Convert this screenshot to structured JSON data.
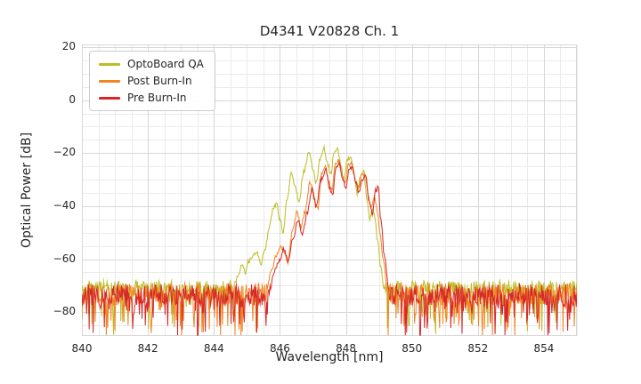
{
  "chart_data": {
    "type": "line",
    "title": "D4341 V20828 Ch. 1",
    "xlabel": "Wavelength [nm]",
    "ylabel": "Optical Power [dB]",
    "xlim": [
      840,
      855
    ],
    "ylim": [
      -89,
      21
    ],
    "x_ticks": [
      840,
      842,
      844,
      846,
      848,
      850,
      852,
      854
    ],
    "y_ticks": [
      20,
      0,
      -20,
      -40,
      -60,
      -80
    ],
    "grid": {
      "on": true,
      "minor_x_step_nm": 0.5,
      "minor_y_step_db": 5,
      "major_color": "#d7d7d7",
      "minor_color": "#ebebeb"
    },
    "legend_position": "upper-left",
    "noise_step_nm": 0.02,
    "series": [
      {
        "name": "OptoBoard QA",
        "color": "#bcbd22",
        "seed": 11,
        "noise_floor": -71.0,
        "noise_band": 6,
        "spike_prob": 0.22,
        "spike_depth": 15,
        "signal_range": [
          844.6,
          849.15
        ],
        "signal_points": [
          [
            844.6,
            -70
          ],
          [
            844.72,
            -67
          ],
          [
            844.85,
            -62
          ],
          [
            844.95,
            -65
          ],
          [
            845.05,
            -61
          ],
          [
            845.18,
            -59
          ],
          [
            845.3,
            -57
          ],
          [
            845.42,
            -62
          ],
          [
            845.55,
            -56
          ],
          [
            845.68,
            -48
          ],
          [
            845.8,
            -41
          ],
          [
            845.9,
            -39
          ],
          [
            846.0,
            -45
          ],
          [
            846.1,
            -50
          ],
          [
            846.22,
            -37
          ],
          [
            846.35,
            -27
          ],
          [
            846.47,
            -33
          ],
          [
            846.58,
            -38
          ],
          [
            846.72,
            -27
          ],
          [
            846.88,
            -20
          ],
          [
            847.0,
            -26
          ],
          [
            847.1,
            -31
          ],
          [
            847.22,
            -22
          ],
          [
            847.33,
            -18
          ],
          [
            847.44,
            -24
          ],
          [
            847.54,
            -28
          ],
          [
            847.64,
            -20
          ],
          [
            847.74,
            -18.5
          ],
          [
            847.84,
            -24
          ],
          [
            847.94,
            -30
          ],
          [
            848.04,
            -23
          ],
          [
            848.14,
            -21
          ],
          [
            848.24,
            -28
          ],
          [
            848.34,
            -35
          ],
          [
            848.44,
            -29
          ],
          [
            848.54,
            -27
          ],
          [
            848.64,
            -38
          ],
          [
            848.72,
            -45
          ],
          [
            848.8,
            -41
          ],
          [
            848.88,
            -44
          ],
          [
            848.96,
            -53
          ],
          [
            849.05,
            -63
          ],
          [
            849.15,
            -71
          ]
        ]
      },
      {
        "name": "Post Burn-In",
        "color": "#f28522",
        "seed": 23,
        "noise_floor": -73.0,
        "noise_band": 8,
        "spike_prob": 0.3,
        "spike_depth": 16,
        "signal_range": [
          845.6,
          849.25
        ],
        "signal_points": [
          [
            845.6,
            -71
          ],
          [
            845.75,
            -64
          ],
          [
            845.88,
            -59
          ],
          [
            846.02,
            -55
          ],
          [
            846.12,
            -57
          ],
          [
            846.24,
            -61
          ],
          [
            846.38,
            -49
          ],
          [
            846.52,
            -42
          ],
          [
            846.64,
            -48
          ],
          [
            846.76,
            -42
          ],
          [
            846.92,
            -31
          ],
          [
            847.04,
            -37
          ],
          [
            847.14,
            -41
          ],
          [
            847.27,
            -28
          ],
          [
            847.38,
            -25
          ],
          [
            847.48,
            -31
          ],
          [
            847.58,
            -34
          ],
          [
            847.68,
            -24
          ],
          [
            847.78,
            -23
          ],
          [
            847.88,
            -28
          ],
          [
            847.98,
            -31
          ],
          [
            848.08,
            -24.5
          ],
          [
            848.18,
            -24
          ],
          [
            848.28,
            -30
          ],
          [
            848.38,
            -33
          ],
          [
            848.48,
            -28.5
          ],
          [
            848.58,
            -28
          ],
          [
            848.68,
            -36
          ],
          [
            848.76,
            -41
          ],
          [
            848.86,
            -37
          ],
          [
            848.94,
            -41
          ],
          [
            849.04,
            -51
          ],
          [
            849.14,
            -61
          ],
          [
            849.25,
            -71
          ]
        ]
      },
      {
        "name": "Pre Burn-In",
        "color": "#d62728",
        "seed": 37,
        "noise_floor": -73.5,
        "noise_band": 8,
        "spike_prob": 0.32,
        "spike_depth": 16,
        "signal_range": [
          845.7,
          849.3
        ],
        "signal_points": [
          [
            845.7,
            -71
          ],
          [
            845.85,
            -64
          ],
          [
            846.0,
            -60
          ],
          [
            846.12,
            -56
          ],
          [
            846.25,
            -61
          ],
          [
            846.4,
            -52
          ],
          [
            846.55,
            -45
          ],
          [
            846.68,
            -51
          ],
          [
            846.82,
            -43
          ],
          [
            846.98,
            -33
          ],
          [
            847.1,
            -40
          ],
          [
            847.24,
            -30
          ],
          [
            847.4,
            -26.5
          ],
          [
            847.5,
            -33
          ],
          [
            847.6,
            -36
          ],
          [
            847.7,
            -25
          ],
          [
            847.8,
            -24
          ],
          [
            847.9,
            -30
          ],
          [
            848.0,
            -33
          ],
          [
            848.1,
            -26
          ],
          [
            848.2,
            -25
          ],
          [
            848.3,
            -31
          ],
          [
            848.4,
            -35
          ],
          [
            848.5,
            -30
          ],
          [
            848.6,
            -29
          ],
          [
            848.7,
            -38
          ],
          [
            848.8,
            -43
          ],
          [
            848.9,
            -34
          ],
          [
            848.98,
            -33
          ],
          [
            849.06,
            -45
          ],
          [
            849.16,
            -58
          ],
          [
            849.3,
            -71
          ]
        ]
      }
    ]
  }
}
